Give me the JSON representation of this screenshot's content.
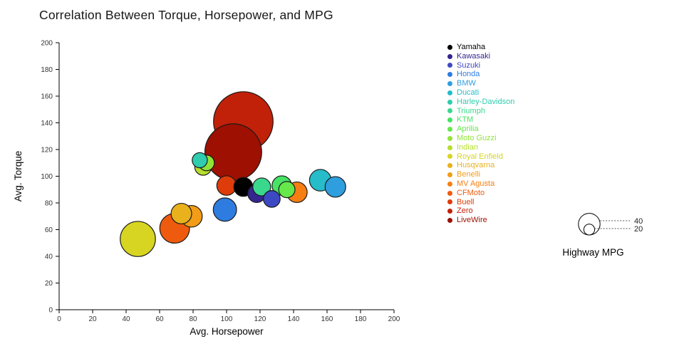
{
  "chart_data": {
    "type": "scatter",
    "variant": "bubble",
    "title": "Correlation Between Torque, Horsepower, and MPG",
    "xlabel": "Avg. Horsepower",
    "ylabel": "Avg. Torque",
    "xlim": [
      0,
      200
    ],
    "ylim": [
      0,
      200
    ],
    "ticks": [
      0,
      20,
      40,
      60,
      80,
      100,
      120,
      140,
      160,
      180,
      200
    ],
    "grid": false,
    "legend_position": "right",
    "size_legend": {
      "title": "Highway MPG",
      "values": [
        40,
        20
      ]
    },
    "series": [
      {
        "name": "Yamaha",
        "color": "#000000",
        "x": 110,
        "y": 92,
        "size": 35
      },
      {
        "name": "Kawasaki",
        "color": "#33268f",
        "x": 118,
        "y": 87,
        "size": 33
      },
      {
        "name": "Suzuki",
        "color": "#3d49c3",
        "x": 127,
        "y": 83,
        "size": 31
      },
      {
        "name": "Honda",
        "color": "#2e7ce0",
        "x": 99,
        "y": 75,
        "size": 43
      },
      {
        "name": "BMW",
        "color": "#2f9ede",
        "x": 165,
        "y": 92,
        "size": 38
      },
      {
        "name": "Ducati",
        "color": "#26bcc9",
        "x": 156,
        "y": 97,
        "size": 40
      },
      {
        "name": "Harley-Davidson",
        "color": "#2fccae",
        "x": 84,
        "y": 112,
        "size": 28
      },
      {
        "name": "Triumph",
        "color": "#3ad88d",
        "x": 121,
        "y": 92,
        "size": 33
      },
      {
        "name": "KTM",
        "color": "#47e266",
        "x": 133,
        "y": 93,
        "size": 36
      },
      {
        "name": "Aprilia",
        "color": "#66e74a",
        "x": 136,
        "y": 90,
        "size": 30
      },
      {
        "name": "Moto Guzzi",
        "color": "#90e438",
        "x": 88,
        "y": 110,
        "size": 29
      },
      {
        "name": "Indian",
        "color": "#b6df2d",
        "x": 86,
        "y": 107,
        "size": 31
      },
      {
        "name": "Royal Enfield",
        "color": "#d7d522",
        "x": 47,
        "y": 53,
        "size": 65
      },
      {
        "name": "Husqvarna",
        "color": "#e9b11c",
        "x": 73,
        "y": 72,
        "size": 38
      },
      {
        "name": "Benelli",
        "color": "#f39c17",
        "x": 79,
        "y": 70,
        "size": 40
      },
      {
        "name": "MV Agusta",
        "color": "#f67e12",
        "x": 142,
        "y": 88,
        "size": 38
      },
      {
        "name": "CFMoto",
        "color": "#ef5b0e",
        "x": 69,
        "y": 61,
        "size": 55
      },
      {
        "name": "Buell",
        "color": "#de3c0a",
        "x": 100,
        "y": 93,
        "size": 36
      },
      {
        "name": "Zero",
        "color": "#c12108",
        "x": 110,
        "y": 141,
        "size": 110
      },
      {
        "name": "LiveWire",
        "color": "#9d1002",
        "x": 104,
        "y": 118,
        "size": 105
      }
    ]
  }
}
